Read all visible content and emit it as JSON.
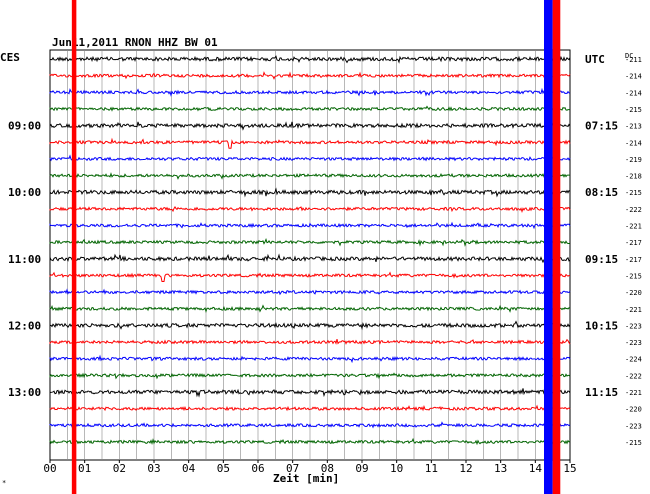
{
  "chart_data": {
    "type": "line",
    "title": "Jun11,2011   RNON HHZ BW 01",
    "left_timezone": "CES",
    "right_timezone": "UTC",
    "dc_label": "DC",
    "xlabel": "Zeit [min]",
    "x_ticks": [
      "00",
      "01",
      "02",
      "03",
      "04",
      "05",
      "06",
      "07",
      "08",
      "09",
      "10",
      "11",
      "12",
      "13",
      "14",
      "15"
    ],
    "xlim": [
      0,
      15
    ],
    "grid": true,
    "left_time_labels": [
      {
        "row": 4,
        "label": "09:00"
      },
      {
        "row": 8,
        "label": "10:00"
      },
      {
        "row": 12,
        "label": "11:00"
      },
      {
        "row": 16,
        "label": "12:00"
      },
      {
        "row": 20,
        "label": "13:00"
      }
    ],
    "right_time_labels": [
      {
        "row": 0,
        "label": "UTC"
      },
      {
        "row": 4,
        "label": "07:15"
      },
      {
        "row": 8,
        "label": "08:15"
      },
      {
        "row": 12,
        "label": "09:15"
      },
      {
        "row": 16,
        "label": "10:15"
      },
      {
        "row": 20,
        "label": "11:15"
      }
    ],
    "dc_offsets": [
      "-211",
      "-214",
      "-214",
      "-215",
      "-213",
      "-214",
      "-219",
      "-218",
      "-215",
      "-222",
      "-221",
      "-217",
      "-217",
      "-215",
      "-220",
      "-221",
      "-223",
      "-223",
      "-224",
      "-222",
      "-221",
      "-220",
      "-223",
      "-215"
    ],
    "trace_colors": [
      "#000000",
      "#ff0000",
      "#0000ff",
      "#006400"
    ],
    "num_traces": 24,
    "events": [
      {
        "color": "#ff0000",
        "x_start": 0.63,
        "x_end": 0.76
      },
      {
        "color": "#0000ff",
        "x_start": 14.25,
        "x_end": 14.5
      },
      {
        "color": "#ff0000",
        "x_start": 14.5,
        "x_end": 14.72
      }
    ],
    "spikes": [
      {
        "row": 13,
        "x": 3.25,
        "color": "#006400"
      },
      {
        "row": 5,
        "x": 5.2,
        "color": "#ff0000"
      }
    ]
  },
  "footer_mark": "*"
}
